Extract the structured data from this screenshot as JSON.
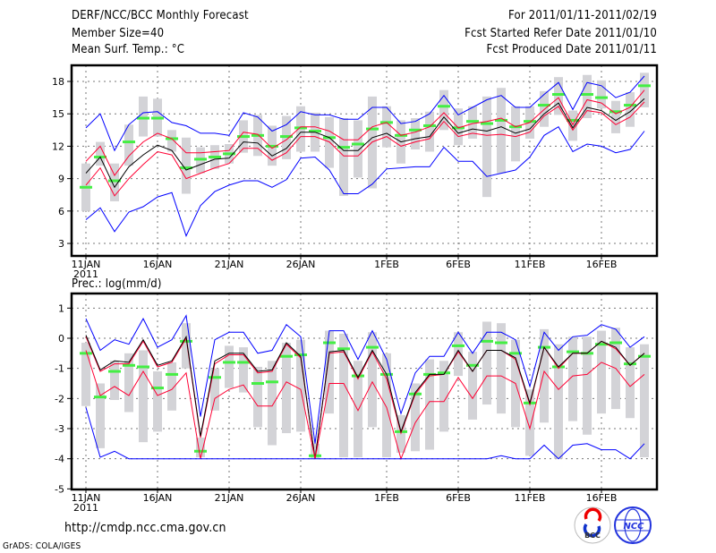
{
  "header": {
    "title": "DERF/NCC/BCC Monthly Forecast",
    "member_size": "Member Size=40",
    "variable1": "Mean Surf. Temp.: °C",
    "period": "For 2011/01/11-2011/02/19",
    "start_date": "Fcst Started Refer Date 2011/01/10",
    "produced_date": "Fcst Produced Date 2011/01/11"
  },
  "footer": {
    "url": "http://cmdp.ncc.cma.gov.cn",
    "credit": "GrADS: COLA/IGES",
    "logos": [
      "BCC",
      "NCC"
    ]
  },
  "colors": {
    "outer": "#0000ff",
    "inner": "#ff0033",
    "mean": "#000000",
    "marker": "#44ee44",
    "range": "#d3d3d7"
  },
  "chart_data": [
    {
      "type": "line",
      "title": "Mean Surf. Temp.: °C",
      "xlabel": "",
      "ylabel": "",
      "x_unit": "days since 2011-01-11",
      "x": [
        0,
        1,
        2,
        3,
        4,
        5,
        6,
        7,
        8,
        9,
        10,
        11,
        12,
        13,
        14,
        15,
        16,
        17,
        18,
        19,
        20,
        21,
        22,
        23,
        24,
        25,
        26,
        27,
        28,
        29,
        30,
        31,
        32,
        33,
        34,
        35,
        36,
        37,
        38,
        39
      ],
      "xlim": [
        -1,
        40
      ],
      "ylim": [
        1,
        19.5
      ],
      "yticks": [
        3,
        6,
        9,
        12,
        15,
        18
      ],
      "xticks": [
        {
          "day": 0,
          "label": "11JAN",
          "sub": "2011"
        },
        {
          "day": 5,
          "label": "16JAN"
        },
        {
          "day": 10,
          "label": "21JAN"
        },
        {
          "day": 15,
          "label": "26JAN"
        },
        {
          "day": 21,
          "label": "1FEB"
        },
        {
          "day": 26,
          "label": "6FEB"
        },
        {
          "day": 31,
          "label": "11FEB"
        },
        {
          "day": 36,
          "label": "16FEB"
        }
      ],
      "grid": true,
      "series": [
        {
          "name": "upper-outer",
          "color": "#0000ff",
          "values": [
            13.7,
            15.0,
            11.6,
            14.0,
            15.1,
            15.2,
            14.2,
            13.9,
            13.2,
            13.2,
            13.0,
            15.1,
            14.7,
            13.4,
            14.0,
            15.2,
            14.9,
            14.9,
            14.5,
            14.5,
            15.6,
            15.6,
            14.1,
            14.3,
            15.0,
            16.7,
            14.9,
            15.6,
            16.3,
            16.7,
            15.6,
            15.6,
            16.8,
            17.9,
            15.4,
            17.9,
            17.6,
            16.5,
            17.0,
            18.5
          ]
        },
        {
          "name": "upper-inner",
          "color": "#ff0033",
          "values": [
            10.6,
            12.0,
            9.3,
            11.1,
            12.4,
            13.2,
            12.7,
            11.4,
            11.4,
            11.5,
            11.6,
            13.3,
            13.1,
            11.8,
            12.6,
            13.8,
            13.8,
            13.4,
            12.6,
            12.6,
            13.8,
            14.2,
            13.0,
            13.3,
            13.8,
            15.1,
            13.7,
            14.1,
            14.3,
            14.6,
            13.8,
            14.2,
            15.4,
            16.5,
            14.0,
            16.3,
            16.0,
            15.0,
            15.6,
            17.2
          ]
        },
        {
          "name": "mean",
          "color": "#000000",
          "values": [
            9.5,
            11.0,
            8.2,
            10.1,
            11.2,
            12.1,
            11.6,
            9.8,
            10.3,
            10.8,
            10.9,
            12.4,
            12.3,
            11.1,
            11.8,
            13.3,
            13.3,
            12.8,
            11.6,
            11.6,
            12.8,
            13.2,
            12.4,
            12.7,
            12.9,
            14.7,
            13.2,
            13.6,
            13.4,
            13.8,
            13.2,
            13.6,
            15.0,
            16.0,
            13.7,
            15.6,
            15.3,
            14.4,
            15.2,
            16.4
          ]
        },
        {
          "name": "lower-inner",
          "color": "#ff0033",
          "values": [
            8.4,
            10.0,
            7.4,
            9.0,
            10.3,
            11.5,
            11.2,
            9.0,
            9.5,
            10.0,
            10.4,
            11.8,
            11.8,
            10.7,
            11.4,
            12.9,
            12.9,
            12.4,
            11.1,
            11.1,
            12.4,
            12.9,
            12.0,
            12.4,
            12.7,
            14.3,
            12.9,
            13.2,
            13.0,
            13.1,
            12.9,
            13.3,
            14.8,
            15.7,
            13.5,
            15.3,
            15.1,
            14.0,
            14.7,
            16.1
          ]
        },
        {
          "name": "lower-outer",
          "color": "#0000ff",
          "values": [
            5.2,
            6.3,
            4.1,
            5.9,
            6.4,
            7.3,
            7.7,
            3.7,
            6.5,
            7.8,
            8.4,
            8.8,
            8.8,
            8.2,
            8.9,
            10.9,
            11.0,
            9.8,
            7.6,
            7.6,
            8.5,
            9.9,
            10.0,
            10.1,
            10.1,
            11.9,
            10.6,
            10.6,
            9.2,
            9.5,
            9.8,
            11.0,
            13.0,
            13.8,
            11.5,
            12.2,
            12.0,
            11.4,
            11.7,
            13.4
          ]
        }
      ],
      "markers": {
        "name": "marker",
        "color": "#44ee44",
        "values": [
          8.2,
          11.0,
          8.8,
          12.4,
          14.6,
          14.6,
          12.7,
          10.0,
          10.8,
          11.0,
          11.3,
          12.9,
          13.0,
          12.0,
          12.9,
          13.7,
          13.4,
          12.8,
          11.9,
          12.2,
          13.6,
          14.2,
          13.0,
          13.5,
          13.9,
          15.7,
          13.7,
          14.3,
          14.1,
          14.4,
          13.8,
          14.3,
          15.8,
          16.8,
          14.4,
          16.8,
          16.5,
          15.2,
          15.8,
          17.6
        ]
      },
      "range": {
        "color": "#d3d3d7",
        "lo": [
          6.0,
          10.2,
          6.9,
          10.2,
          12.9,
          12.9,
          11.5,
          7.6,
          9.5,
          9.9,
          10.4,
          11.4,
          11.1,
          10.2,
          10.8,
          11.5,
          11.5,
          10.0,
          7.4,
          9.1,
          8.1,
          11.9,
          10.4,
          11.7,
          11.5,
          13.5,
          12.1,
          12.7,
          7.3,
          9.5,
          10.6,
          12.7,
          13.8,
          14.9,
          12.5,
          14.6,
          15.5,
          13.2,
          13.8,
          15.6
        ],
        "hi": [
          10.4,
          12.4,
          10.4,
          14.0,
          16.6,
          16.4,
          13.5,
          12.8,
          11.9,
          12.1,
          12.2,
          14.4,
          14.9,
          13.9,
          14.8,
          15.7,
          15.1,
          14.7,
          14.6,
          14.4,
          16.6,
          15.7,
          14.4,
          14.6,
          15.2,
          17.2,
          15.5,
          15.7,
          16.6,
          17.4,
          15.7,
          15.7,
          17.1,
          18.4,
          15.3,
          18.6,
          18.1,
          16.2,
          17.0,
          18.8
        ]
      }
    },
    {
      "type": "line",
      "title": "Prec.: log(mm/d)",
      "xlabel": "",
      "ylabel": "",
      "x_unit": "days since 2011-01-11",
      "x": [
        0,
        1,
        2,
        3,
        4,
        5,
        6,
        7,
        8,
        9,
        10,
        11,
        12,
        13,
        14,
        15,
        16,
        17,
        18,
        19,
        20,
        21,
        22,
        23,
        24,
        25,
        26,
        27,
        28,
        29,
        30,
        31,
        32,
        33,
        34,
        35,
        36,
        37,
        38,
        39
      ],
      "xlim": [
        -1,
        40
      ],
      "ylim": [
        -5,
        1.5
      ],
      "yticks": [
        -5,
        -4,
        -3,
        -2,
        -1,
        0,
        1
      ],
      "xticks": [
        {
          "day": 0,
          "label": "11JAN",
          "sub": "2011"
        },
        {
          "day": 5,
          "label": "16JAN"
        },
        {
          "day": 10,
          "label": "21JAN"
        },
        {
          "day": 15,
          "label": "26JAN"
        },
        {
          "day": 21,
          "label": "1FEB"
        },
        {
          "day": 26,
          "label": "6FEB"
        },
        {
          "day": 31,
          "label": "11FEB"
        },
        {
          "day": 36,
          "label": "16FEB"
        }
      ],
      "grid": true,
      "series": [
        {
          "name": "upper-outer",
          "color": "#0000ff",
          "values": [
            0.65,
            -0.4,
            -0.05,
            -0.2,
            0.65,
            -0.3,
            -0.05,
            0.75,
            -2.6,
            -0.05,
            0.2,
            0.2,
            -0.5,
            -0.4,
            0.45,
            0.05,
            -3.5,
            0.25,
            0.25,
            -0.7,
            0.25,
            -0.7,
            -2.5,
            -1.15,
            -0.6,
            -0.6,
            0.2,
            -0.5,
            0.2,
            0.2,
            -0.05,
            -1.6,
            0.2,
            -0.4,
            0.05,
            0.1,
            0.45,
            0.3,
            -0.3,
            0.05
          ]
        },
        {
          "name": "upper-inner",
          "color": "#ff0033",
          "values": [
            0.05,
            -1.1,
            -0.85,
            -0.85,
            -0.1,
            -0.95,
            -0.8,
            0.0,
            -3.3,
            -0.85,
            -0.55,
            -0.55,
            -1.15,
            -1.1,
            -0.2,
            -0.65,
            -4.0,
            -0.5,
            -0.45,
            -1.35,
            -0.45,
            -1.35,
            -3.15,
            -1.85,
            -1.25,
            -1.2,
            -0.45,
            -1.1,
            -0.4,
            -0.4,
            -0.7,
            -2.2,
            -0.3,
            -1.0,
            -0.5,
            -0.5,
            -0.1,
            -0.35,
            -0.9,
            -0.5
          ]
        },
        {
          "name": "mean",
          "color": "#000000",
          "values": [
            0.1,
            -1.05,
            -0.75,
            -0.8,
            -0.05,
            -0.9,
            -0.75,
            0.05,
            -3.25,
            -0.75,
            -0.5,
            -0.5,
            -1.1,
            -1.05,
            -0.15,
            -0.6,
            -4.0,
            -0.45,
            -0.4,
            -1.3,
            -0.4,
            -1.2,
            -3.1,
            -1.8,
            -1.2,
            -1.2,
            -0.4,
            -1.1,
            -0.4,
            -0.4,
            -0.65,
            -2.15,
            -0.3,
            -0.95,
            -0.5,
            -0.5,
            -0.1,
            -0.3,
            -0.9,
            -0.5
          ]
        },
        {
          "name": "lower-inner",
          "color": "#ff0033",
          "values": [
            -0.4,
            -1.9,
            -1.6,
            -1.9,
            -1.1,
            -1.9,
            -1.7,
            -1.15,
            -4.0,
            -2.0,
            -1.7,
            -1.55,
            -2.25,
            -2.25,
            -1.45,
            -1.7,
            -4.0,
            -1.5,
            -1.5,
            -2.4,
            -1.45,
            -2.3,
            -4.0,
            -2.8,
            -2.1,
            -2.1,
            -1.3,
            -2.0,
            -1.25,
            -1.25,
            -1.5,
            -3.0,
            -1.1,
            -1.7,
            -1.25,
            -1.2,
            -0.8,
            -1.0,
            -1.6,
            -1.2
          ]
        },
        {
          "name": "lower-outer",
          "color": "#0000ff",
          "values": [
            -2.3,
            -3.95,
            -3.75,
            -4.0,
            -4.0,
            -4.0,
            -4.0,
            -4.0,
            -4.0,
            -4.0,
            -4.0,
            -4.0,
            -4.0,
            -4.0,
            -4.0,
            -4.0,
            -4.0,
            -4.0,
            -4.0,
            -4.0,
            -4.0,
            -4.0,
            -4.0,
            -4.0,
            -4.0,
            -4.0,
            -4.0,
            -4.0,
            -4.0,
            -3.9,
            -4.0,
            -4.0,
            -3.55,
            -4.0,
            -3.55,
            -3.5,
            -3.7,
            -3.7,
            -4.0,
            -3.5
          ]
        }
      ],
      "markers": {
        "name": "marker",
        "color": "#44ee44",
        "values": [
          -0.5,
          -1.95,
          -1.1,
          -0.9,
          -0.95,
          -1.65,
          -1.2,
          -0.1,
          -3.75,
          -1.3,
          -0.8,
          -0.8,
          -1.5,
          -1.45,
          -0.6,
          -0.55,
          -3.9,
          -0.15,
          -0.35,
          -1.25,
          -0.3,
          -1.2,
          -3.1,
          -1.85,
          -1.2,
          -1.15,
          -0.25,
          -0.9,
          -0.1,
          -0.15,
          -0.5,
          -2.15,
          -0.3,
          -0.95,
          -0.45,
          -0.5,
          -0.2,
          -0.15,
          -0.85,
          -0.6
        ]
      },
      "range": {
        "color": "#d3d3d7",
        "lo": [
          -2.25,
          -3.65,
          -2.05,
          -2.45,
          -3.45,
          -3.1,
          -2.4,
          -1.0,
          -3.95,
          -2.4,
          -1.65,
          -1.8,
          -2.95,
          -3.55,
          -3.15,
          -3.1,
          -4.0,
          -2.5,
          -3.95,
          -3.95,
          -2.95,
          -3.95,
          -3.8,
          -3.75,
          -3.7,
          -3.1,
          -1.25,
          -2.7,
          -2.2,
          -2.5,
          -2.95,
          -3.9,
          -2.8,
          -4.0,
          -2.75,
          -3.2,
          -2.5,
          -2.35,
          -2.65,
          -3.95
        ],
        "hi": [
          -0.15,
          -1.5,
          -0.75,
          -0.5,
          -0.4,
          -1.1,
          -0.8,
          0.5,
          -3.3,
          -1.0,
          -0.25,
          -0.3,
          -0.95,
          -0.75,
          -0.15,
          -0.05,
          -3.5,
          0.25,
          0.15,
          -0.75,
          0.2,
          -0.5,
          -2.55,
          -1.5,
          -0.7,
          -0.75,
          0.2,
          -0.45,
          0.55,
          0.5,
          -0.05,
          -1.7,
          0.3,
          -0.2,
          0.05,
          0.05,
          0.25,
          0.35,
          -0.3,
          -0.2
        ]
      }
    }
  ]
}
